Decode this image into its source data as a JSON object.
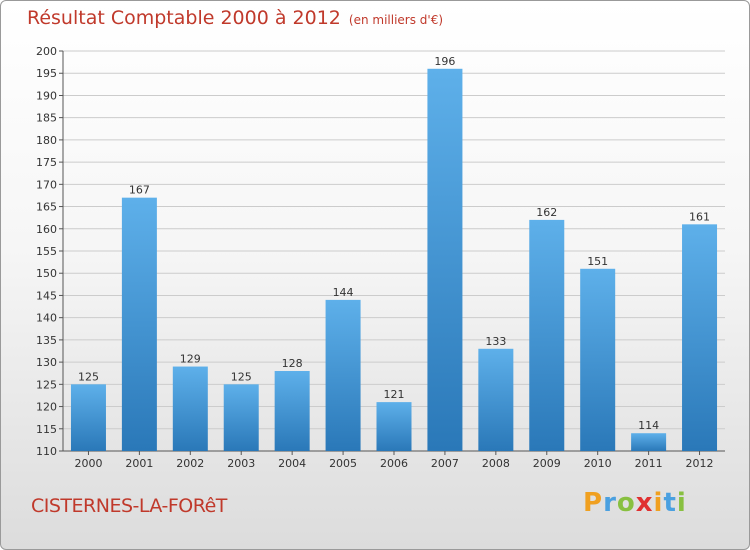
{
  "header": {
    "title": "Résultat Comptable 2000 à 2012",
    "unit": "(en milliers d'€)"
  },
  "footer": {
    "commune": "CISTERNES-LA-FORêT"
  },
  "logo": {
    "letters": [
      {
        "ch": "P",
        "color": "#f0a020"
      },
      {
        "ch": "r",
        "color": "#4aa0e0"
      },
      {
        "ch": "o",
        "color": "#88c040"
      },
      {
        "ch": "x",
        "color": "#e03030"
      },
      {
        "ch": "i",
        "color": "#f0a020"
      },
      {
        "ch": "t",
        "color": "#4aa0e0"
      },
      {
        "ch": "i",
        "color": "#88c040"
      }
    ]
  },
  "colors": {
    "bar_light": "#5eb0ea",
    "bar_dark": "#2a78b8",
    "grid": "#cccccc",
    "title": "#c0392b"
  },
  "chart_data": {
    "type": "bar",
    "title": "Résultat Comptable 2000 à 2012",
    "subtitle": "(en milliers d'€)",
    "xlabel": "",
    "ylabel": "",
    "categories": [
      "2000",
      "2001",
      "2002",
      "2003",
      "2004",
      "2005",
      "2006",
      "2007",
      "2008",
      "2009",
      "2010",
      "2011",
      "2012"
    ],
    "values": [
      125,
      167,
      129,
      125,
      128,
      144,
      121,
      196,
      133,
      162,
      151,
      114,
      161
    ],
    "ylim": [
      110,
      200
    ],
    "ytick_step": 5,
    "grid": true
  }
}
